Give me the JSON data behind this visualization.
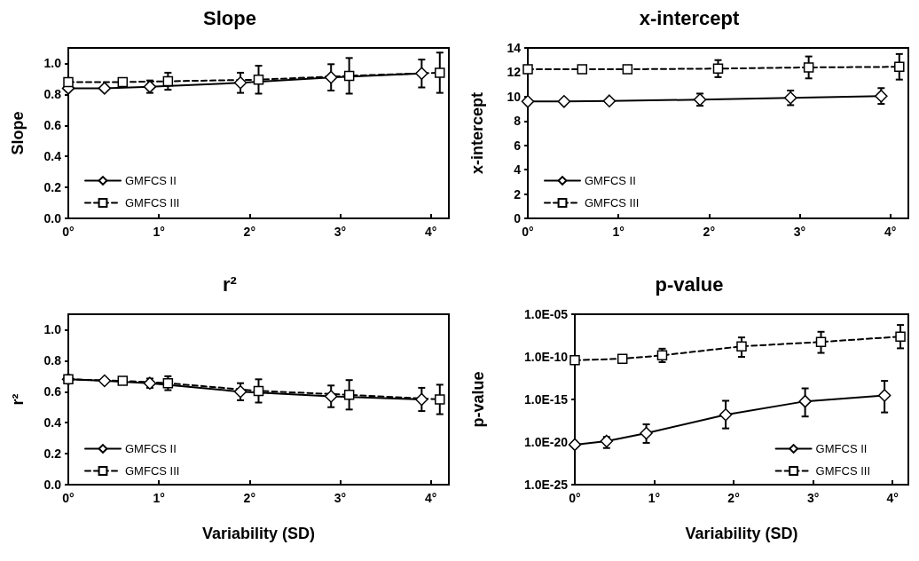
{
  "chart_data": [
    {
      "type": "line",
      "title": "Slope",
      "ylabel": "Slope",
      "xlim": [
        0,
        4.2
      ],
      "xticks": [
        {
          "value": 0,
          "label": "0°"
        },
        {
          "value": 1,
          "label": "1°"
        },
        {
          "value": 2,
          "label": "2°"
        },
        {
          "value": 3,
          "label": "3°"
        },
        {
          "value": 4,
          "label": "4°"
        }
      ],
      "ylim": [
        0,
        1.1
      ],
      "yticks": [
        {
          "value": 0,
          "label": "0.0"
        },
        {
          "value": 0.2,
          "label": "0.2"
        },
        {
          "value": 0.4,
          "label": "0.4"
        },
        {
          "value": 0.6,
          "label": "0.6"
        },
        {
          "value": 0.8,
          "label": "0.8"
        },
        {
          "value": 1,
          "label": "1.0"
        }
      ],
      "legend": "bottom left",
      "series": [
        {
          "name": "GMFCS II",
          "color": "#000000",
          "marker": "diamond",
          "line_style": "solid",
          "x": [
            0,
            0.4,
            0.9,
            1.9,
            2.9,
            3.9
          ],
          "values": [
            0.84,
            0.84,
            0.85,
            0.875,
            0.91,
            0.935
          ],
          "errors": [
            null,
            null,
            0.04,
            0.065,
            0.085,
            0.09
          ]
        },
        {
          "name": "GMFCS III",
          "color": "#000000",
          "marker": "square",
          "line_style": "dashed",
          "x": [
            0,
            0.6,
            1.1,
            2.1,
            3.1,
            4.1
          ],
          "values": [
            0.88,
            0.88,
            0.885,
            0.895,
            0.92,
            0.94
          ],
          "errors": [
            null,
            null,
            0.055,
            0.09,
            0.115,
            0.13
          ]
        }
      ]
    },
    {
      "type": "line",
      "title": "x-intercept",
      "ylabel": "x-intercept",
      "xlim": [
        0,
        4.2
      ],
      "xticks": [
        {
          "value": 0,
          "label": "0°"
        },
        {
          "value": 1,
          "label": "1°"
        },
        {
          "value": 2,
          "label": "2°"
        },
        {
          "value": 3,
          "label": "3°"
        },
        {
          "value": 4,
          "label": "4°"
        }
      ],
      "ylim": [
        0,
        14
      ],
      "yticks": [
        0,
        2,
        4,
        6,
        8,
        10,
        12,
        14
      ],
      "legend": "bottom left",
      "series": [
        {
          "name": "GMFCS II",
          "color": "#000000",
          "marker": "diamond",
          "line_style": "solid",
          "x": [
            0,
            0.4,
            0.9,
            1.9,
            2.9,
            3.9
          ],
          "values": [
            9.6,
            9.6,
            9.65,
            9.75,
            9.9,
            10.05
          ],
          "errors": [
            null,
            null,
            null,
            0.5,
            0.6,
            0.65
          ]
        },
        {
          "name": "GMFCS III",
          "color": "#000000",
          "marker": "square",
          "line_style": "dashed",
          "x": [
            0,
            0.6,
            1.1,
            2.1,
            3.1,
            4.1
          ],
          "values": [
            12.25,
            12.25,
            12.25,
            12.3,
            12.4,
            12.45
          ],
          "errors": [
            null,
            null,
            0.2,
            0.7,
            0.9,
            1.05
          ]
        }
      ]
    },
    {
      "type": "line",
      "title": "r²",
      "ylabel": "r²",
      "xlabel": "Variability (SD)",
      "xlim": [
        0,
        4.2
      ],
      "xticks": [
        {
          "value": 0,
          "label": "0°"
        },
        {
          "value": 1,
          "label": "1°"
        },
        {
          "value": 2,
          "label": "2°"
        },
        {
          "value": 3,
          "label": "3°"
        },
        {
          "value": 4,
          "label": "4°"
        }
      ],
      "ylim": [
        0,
        1.1
      ],
      "yticks": [
        {
          "value": 0,
          "label": "0.0"
        },
        {
          "value": 0.2,
          "label": "0.2"
        },
        {
          "value": 0.4,
          "label": "0.4"
        },
        {
          "value": 0.6,
          "label": "0.6"
        },
        {
          "value": 0.8,
          "label": "0.8"
        },
        {
          "value": 1,
          "label": "1.0"
        }
      ],
      "legend": "bottom left",
      "series": [
        {
          "name": "GMFCS II",
          "color": "#000000",
          "marker": "diamond",
          "line_style": "solid",
          "x": [
            0,
            0.4,
            0.9,
            1.9,
            2.9,
            3.9
          ],
          "values": [
            0.68,
            0.67,
            0.655,
            0.6,
            0.57,
            0.55
          ],
          "errors": [
            null,
            null,
            0.03,
            0.055,
            0.07,
            0.075
          ]
        },
        {
          "name": "GMFCS III",
          "color": "#000000",
          "marker": "square",
          "line_style": "dashed",
          "x": [
            0,
            0.6,
            1.1,
            2.1,
            3.1,
            4.1
          ],
          "values": [
            0.68,
            0.67,
            0.655,
            0.605,
            0.58,
            0.55
          ],
          "errors": [
            null,
            null,
            0.045,
            0.075,
            0.095,
            0.095
          ]
        }
      ]
    },
    {
      "type": "line",
      "title": "p-value",
      "ylabel": "p-value",
      "xlabel": "Variability (SD)",
      "log": "y",
      "xlim": [
        0,
        4.2
      ],
      "xticks": [
        {
          "value": 0,
          "label": "0°"
        },
        {
          "value": 1,
          "label": "1°"
        },
        {
          "value": 2,
          "label": "2°"
        },
        {
          "value": 3,
          "label": "3°"
        },
        {
          "value": 4,
          "label": "4°"
        }
      ],
      "ylim": [
        1e-25,
        1e-05
      ],
      "yticks": [
        {
          "value": 1e-25,
          "label": "1.0E-25"
        },
        {
          "value": 1e-20,
          "label": "1.0E-20"
        },
        {
          "value": 1e-15,
          "label": "1.0E-15"
        },
        {
          "value": 1e-10,
          "label": "1.0E-10"
        },
        {
          "value": 1e-05,
          "label": "1.0E-05"
        }
      ],
      "legend": "bottom right",
      "series": [
        {
          "name": "GMFCS II",
          "color": "#000000",
          "marker": "diamond",
          "line_style": "solid",
          "x": [
            0,
            0.4,
            0.9,
            1.9,
            2.9,
            3.9
          ],
          "values": [
            5e-21,
            1.3e-20,
            1.1e-19,
            1.6e-17,
            6e-16,
            3e-15
          ],
          "errors": [
            null,
            [
              2e-21,
              4e-20
            ],
            [
              8e-21,
              1.2e-18
            ],
            [
              4e-19,
              7e-16
            ],
            [
              1e-17,
              2e-14
            ],
            [
              3e-17,
              1.5e-13
            ]
          ]
        },
        {
          "name": "GMFCS III",
          "color": "#000000",
          "marker": "square",
          "line_style": "dashed",
          "x": [
            0,
            0.6,
            1.1,
            2.1,
            3.1,
            4.1
          ],
          "values": [
            4e-11,
            6e-11,
            1.5e-10,
            1.7e-09,
            5.6e-09,
            2.4e-08
          ],
          "errors": [
            null,
            null,
            [
              2.4e-11,
              9e-10
            ],
            [
              1e-10,
              1.9e-08
            ],
            [
              2.9e-10,
              8.7e-08
            ],
            [
              1e-09,
              5.5e-07
            ]
          ]
        }
      ]
    }
  ]
}
